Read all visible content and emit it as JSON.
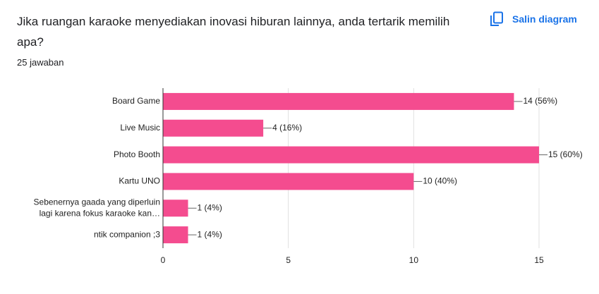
{
  "header": {
    "title": "Jika ruangan karaoke menyediakan inovasi hiburan lainnya, anda tertarik memilih apa?",
    "subtitle": "25 jawaban",
    "copy_button": "Salin diagram"
  },
  "chart_data": {
    "type": "hbar",
    "categories": [
      "Board Game",
      "Live Music",
      "Photo Booth",
      "Kartu UNO",
      [
        "Sebenernya gaada yang diperluin",
        "lagi karena fokus karaoke kan…"
      ],
      "ntik companion ;3"
    ],
    "values": [
      14,
      4,
      15,
      10,
      1,
      1
    ],
    "value_labels": [
      "14 (56%)",
      "4 (16%)",
      "15 (60%)",
      "10 (40%)",
      "1 (4%)",
      "1 (4%)"
    ],
    "color": "#f44c8f",
    "xlim": [
      0,
      15
    ],
    "xticks": [
      0,
      5,
      10,
      15
    ],
    "grid": true
  }
}
